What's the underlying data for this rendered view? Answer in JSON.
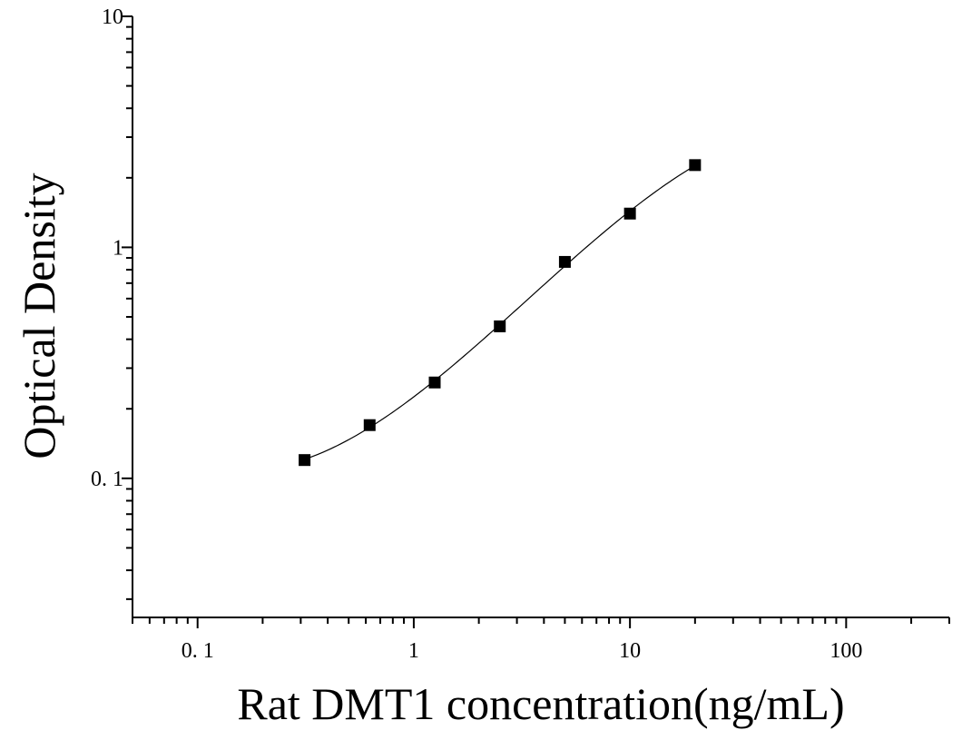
{
  "chart_data": {
    "type": "scatter",
    "xlabel": "Rat DMT1 concentration(ng/mL)",
    "ylabel": "Optical Density",
    "x_scale": "log",
    "y_scale": "log",
    "xlim": [
      0.05,
      300
    ],
    "ylim": [
      0.025,
      10
    ],
    "x_ticks": [
      {
        "value": 0.1,
        "label": "0. 1"
      },
      {
        "value": 1,
        "label": "1"
      },
      {
        "value": 10,
        "label": "10"
      },
      {
        "value": 100,
        "label": "100"
      }
    ],
    "y_ticks": [
      {
        "value": 0.1,
        "label": "0. 1"
      },
      {
        "value": 1,
        "label": "1"
      },
      {
        "value": 10,
        "label": "10"
      }
    ],
    "grid": false,
    "marker": "square",
    "fit_line": true,
    "series": [
      {
        "x": [
          0.3125,
          0.625,
          1.25,
          2.5,
          5,
          10,
          20
        ],
        "y": [
          0.12,
          0.17,
          0.26,
          0.455,
          0.865,
          1.4,
          2.27
        ]
      }
    ],
    "colors": {
      "marker": "#000000",
      "line": "#000000",
      "axis": "#000000"
    }
  }
}
